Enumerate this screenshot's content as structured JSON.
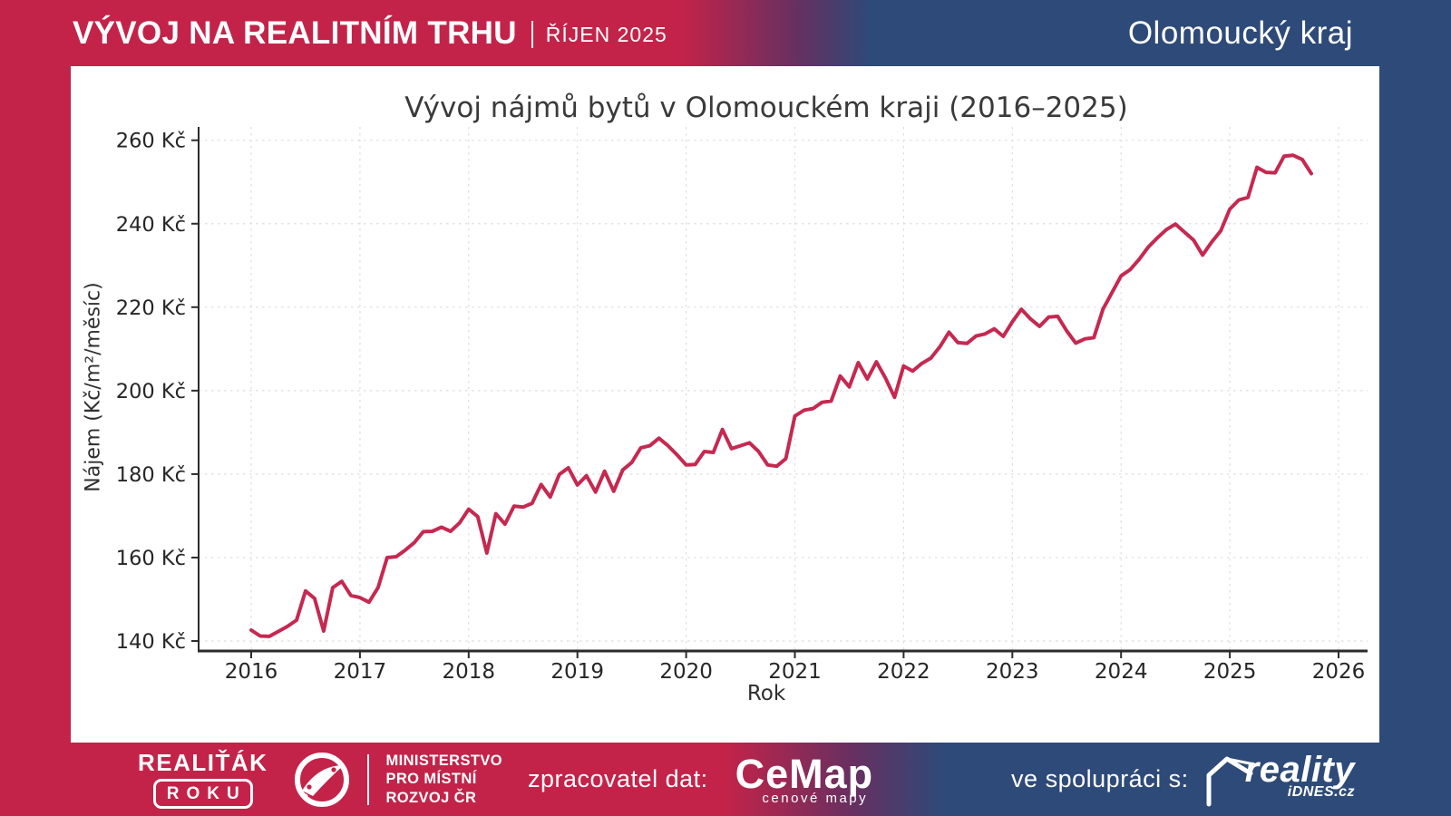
{
  "header": {
    "title": "VÝVOJ NA REALITNÍM TRHU",
    "period": "ŘÍJEN 2025",
    "region": "Olomoucký kraj"
  },
  "chart": {
    "title": "Vývoj nájmů bytů v Olomouckém kraji (2016–2025)",
    "xlabel": "Rok",
    "ylabel": "Nájem (Kč/m²/měsíc)"
  },
  "chart_data": {
    "type": "line",
    "title": "Vývoj nájmů bytů v Olomouckém kraji (2016–2025)",
    "xlabel": "Rok",
    "ylabel": "Nájem (Kč/m²/měsíc)",
    "x_start": "2016-01",
    "x_end": "2025-10",
    "x_interval": "monthly",
    "xticks": [
      "2016",
      "2017",
      "2018",
      "2019",
      "2020",
      "2021",
      "2022",
      "2023",
      "2024",
      "2025",
      "2026"
    ],
    "ytick_labels": [
      "140 Kč",
      "160 Kč",
      "180 Kč",
      "200 Kč",
      "220 Kč",
      "240 Kč",
      "260 Kč"
    ],
    "ytick_values": [
      140,
      160,
      180,
      200,
      220,
      240,
      260
    ],
    "ylim": [
      134,
      261
    ],
    "xlim_years": [
      2015.52,
      2026.27
    ],
    "grid": true,
    "legend": "none",
    "line_color": "#c52950",
    "series": [
      {
        "name": "Nájem (Kč/m²/měsíc)",
        "values": [
          142.6,
          141.2,
          141.1,
          142.3,
          143.5,
          145.0,
          152.0,
          150.2,
          142.4,
          152.8,
          154.3,
          150.9,
          150.4,
          149.3,
          152.8,
          160.0,
          160.2,
          161.8,
          163.6,
          166.2,
          166.3,
          167.3,
          166.3,
          168.3,
          171.6,
          169.8,
          161.1,
          170.5,
          168.0,
          172.3,
          172.1,
          173.0,
          177.5,
          174.5,
          179.9,
          181.5,
          177.4,
          179.6,
          175.7,
          180.7,
          175.9,
          181.0,
          182.8,
          186.3,
          186.8,
          188.6,
          186.8,
          184.6,
          182.2,
          182.3,
          185.4,
          185.2,
          190.7,
          186.1,
          186.8,
          187.5,
          185.4,
          182.2,
          181.9,
          183.7,
          193.9,
          195.3,
          195.7,
          197.2,
          197.5,
          203.5,
          200.9,
          206.7,
          202.8,
          206.9,
          203.0,
          198.4,
          205.9,
          204.7,
          206.5,
          207.8,
          210.5,
          214.0,
          211.5,
          211.3,
          213.1,
          213.6,
          214.8,
          213.0,
          216.5,
          219.5,
          217.2,
          215.4,
          217.6,
          217.8,
          214.3,
          211.4,
          212.4,
          212.7,
          219.5,
          223.5,
          227.5,
          229.0,
          231.5,
          234.4,
          236.6,
          238.6,
          239.9,
          238.0,
          236.1,
          232.5,
          235.6,
          238.3,
          243.5,
          245.7,
          246.3,
          253.5,
          252.3,
          252.2,
          256.2,
          256.4,
          255.4,
          252.0
        ]
      }
    ]
  },
  "footer": {
    "award": {
      "line1": "REALIŤÁK",
      "line2": "ROKU"
    },
    "ministry": {
      "line1": "MINISTERSTVO",
      "line2": "PRO MÍSTNÍ",
      "line3": "ROZVOJ ČR"
    },
    "data_label": "zpracovatel dat:",
    "cemap": {
      "name": "CeMap",
      "subtitle": "cenové mapy"
    },
    "partner_label": "ve spolupráci s:",
    "idnes": {
      "name": "reality",
      "sub": "iDNES.cz"
    }
  },
  "colors": {
    "crimson": "#c32349",
    "dark_blue": "#2e4a78",
    "line": "#c52950",
    "grid": "#dedede",
    "title_text": "#3a3a3a"
  }
}
